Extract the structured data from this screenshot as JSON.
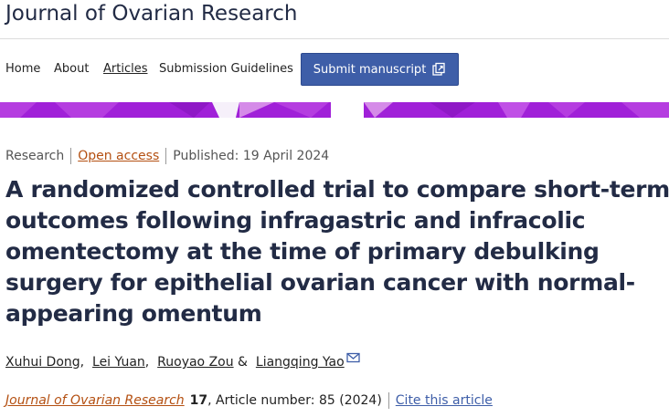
{
  "journal": {
    "title": "Journal of Ovarian Research"
  },
  "nav": {
    "home": "Home",
    "about": "About",
    "articles": "Articles",
    "guidelines": "Submission Guidelines",
    "submit": "Submit manuscript",
    "submit_icon": "external-link-icon"
  },
  "colors": {
    "banner_primary": "#a020d8",
    "banner_light": "#d58be8",
    "link_orange": "#b45012",
    "button_blue": "#3e5ea8",
    "title_navy": "#222b45"
  },
  "article": {
    "type": "Research",
    "access": "Open access",
    "published": "Published: 19 April 2024",
    "title_lines": [
      "A randomized controlled trial to compare short-term",
      "outcomes following infragastric and infracolic",
      "omentectomy at the time of primary debulking",
      "surgery for epithelial ovarian cancer with normal-",
      "appearing omentum"
    ],
    "authors": [
      "Xuhui Dong",
      "Lei Yuan",
      "Ruoyao Zou",
      "Liangqing Yao"
    ],
    "author_sep_1": ",",
    "author_sep_2": ",",
    "author_sep_3": " &",
    "corresponding_icon": "envelope-icon"
  },
  "citation": {
    "journal": "Journal of Ovarian Research",
    "volume": "17",
    "rest": ", Article number: 85 (2024)",
    "cite_link": "Cite this article"
  }
}
